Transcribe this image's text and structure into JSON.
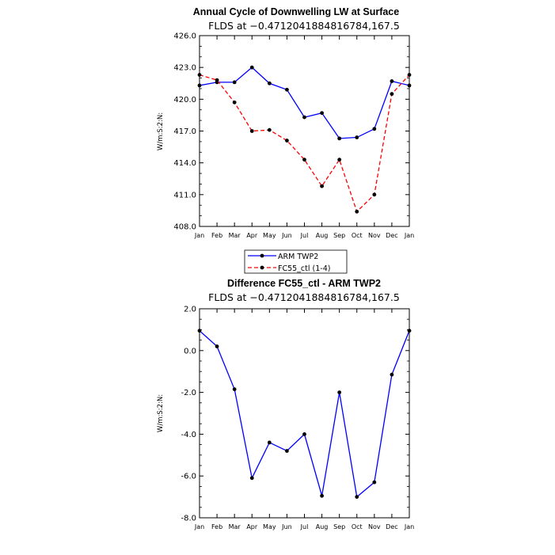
{
  "chart_data": [
    {
      "type": "line",
      "title": "Annual Cycle of Downwelling LW at Surface",
      "subtitle": "FLDS at −0.4712041884816784,167.5",
      "xlabel": "",
      "ylabel": "W/m:S:2:N:",
      "categories": [
        "Jan",
        "Feb",
        "Mar",
        "Apr",
        "May",
        "Jun",
        "Jul",
        "Aug",
        "Sep",
        "Oct",
        "Nov",
        "Dec",
        "Jan"
      ],
      "ylim": [
        408.0,
        426.0
      ],
      "yticks": [
        "408.0",
        "411.0",
        "414.0",
        "417.0",
        "420.0",
        "423.0",
        "426.0"
      ],
      "legend_position": "bottom-left",
      "series": [
        {
          "name": "ARM TWP2",
          "color": "#0000ff",
          "dash": "solid",
          "values": [
            421.3,
            421.6,
            421.6,
            423.0,
            421.5,
            420.9,
            418.3,
            418.7,
            416.3,
            416.4,
            417.2,
            421.7,
            421.3
          ]
        },
        {
          "name": "FC55_ctl (1-4)",
          "color": "#ff0000",
          "dash": "dashed",
          "values": [
            422.3,
            421.8,
            419.7,
            417.0,
            417.1,
            416.1,
            414.3,
            411.8,
            414.3,
            409.4,
            411.0,
            420.5,
            422.3
          ]
        }
      ]
    },
    {
      "type": "line",
      "title": "Difference FC55_ctl - ARM TWP2",
      "subtitle": "FLDS at −0.4712041884816784,167.5",
      "xlabel": "",
      "ylabel": "W/m:S:2:N:",
      "categories": [
        "Jan",
        "Feb",
        "Mar",
        "Apr",
        "May",
        "Jun",
        "Jul",
        "Aug",
        "Sep",
        "Oct",
        "Nov",
        "Dec",
        "Jan"
      ],
      "ylim": [
        -8.0,
        2.0
      ],
      "yticks": [
        "-8.0",
        "-6.0",
        "-4.0",
        "-2.0",
        "0.0",
        "2.0"
      ],
      "series": [
        {
          "color": "#0000ff",
          "dash": "solid",
          "values": [
            0.95,
            0.2,
            -1.85,
            -6.1,
            -4.4,
            -4.8,
            -4.0,
            -6.95,
            -2.0,
            -7.0,
            -6.3,
            -1.15,
            0.95
          ]
        }
      ]
    }
  ]
}
